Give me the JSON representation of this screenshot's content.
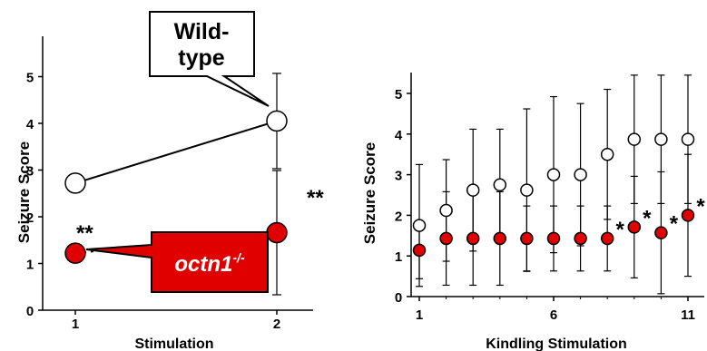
{
  "chart_data": [
    {
      "type": "line",
      "ylabel": "Seizure Score",
      "xlabel": "Stimulation",
      "x": [
        1,
        2
      ],
      "x_ticks": [
        "1",
        "2"
      ],
      "y_ticks": [
        "0",
        "1",
        "2",
        "3",
        "4",
        "5"
      ],
      "ylim": [
        0,
        5.9
      ],
      "series": [
        {
          "name": "Wild-type",
          "values": [
            2.72,
            4.05
          ],
          "errors": [
            0,
            1.02
          ],
          "marker_fill": "#ffffff",
          "line_style": "solid"
        },
        {
          "name": "octn1-/-",
          "values": [
            1.22,
            1.66
          ],
          "errors": [
            0,
            1.33
          ],
          "marker_fill": "#e00000",
          "line_style": "dash-dot"
        }
      ],
      "annotations": [
        "**",
        "**"
      ],
      "callouts": {
        "wildtype_lines": [
          "Wild-",
          "type"
        ],
        "knockout_base": "octn1",
        "knockout_sup": "-/-"
      }
    },
    {
      "type": "scatter",
      "ylabel": "Seizure Score",
      "xlabel": "Kindling Stimulation",
      "x": [
        1,
        2,
        3,
        4,
        5,
        6,
        7,
        8,
        9,
        10,
        11
      ],
      "x_ticks": [
        "1",
        "6",
        "11"
      ],
      "y_ticks": [
        "0",
        "1",
        "2",
        "3",
        "4",
        "5"
      ],
      "ylim": [
        0,
        5.6
      ],
      "series": [
        {
          "name": "Wild-type",
          "values": [
            1.75,
            2.12,
            2.62,
            2.75,
            2.62,
            3.0,
            3.0,
            3.5,
            3.87,
            3.87,
            3.87
          ],
          "errors": [
            1.5,
            1.25,
            1.5,
            1.37,
            2.0,
            1.92,
            1.75,
            1.6,
            1.58,
            1.58,
            1.58
          ],
          "marker_fill": "#ffffff"
        },
        {
          "name": "octn1-/-",
          "values": [
            1.14,
            1.43,
            1.43,
            1.43,
            1.43,
            1.43,
            1.43,
            1.43,
            1.71,
            1.57,
            2.0
          ],
          "errors": [
            0.7,
            1.15,
            1.15,
            1.15,
            0.8,
            0.8,
            0.8,
            0.8,
            1.25,
            1.5,
            1.5
          ],
          "marker_fill": "#e00000"
        }
      ],
      "significance_marks": {
        "x": [
          8,
          9,
          10,
          11
        ],
        "label": "*"
      }
    }
  ]
}
